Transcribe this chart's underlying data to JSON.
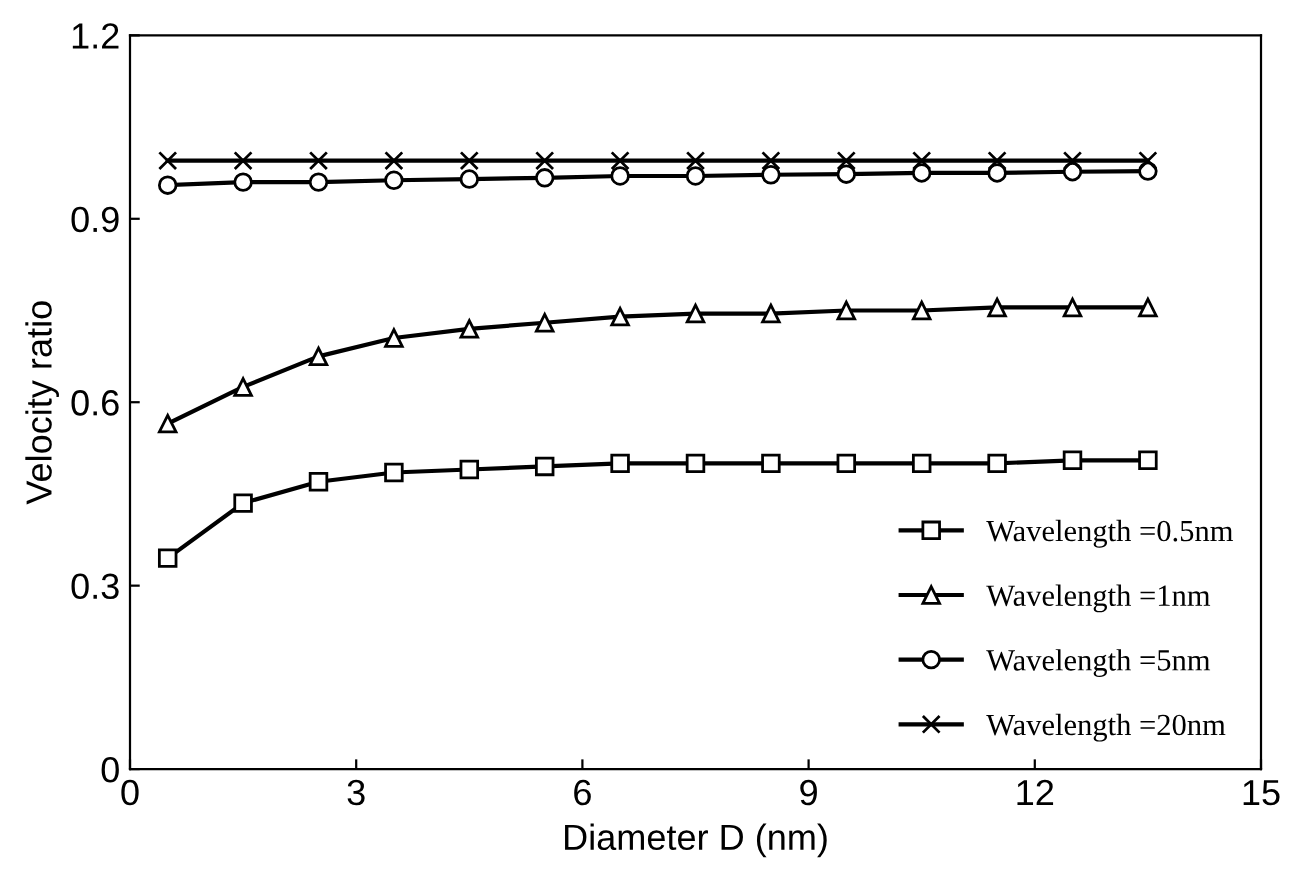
{
  "chart_data": {
    "type": "line",
    "xlabel": "Diameter D (nm)",
    "ylabel": "Velocity ratio",
    "x": [
      0.5,
      1.5,
      2.5,
      3.5,
      4.5,
      5.5,
      6.5,
      7.5,
      8.5,
      9.5,
      10.5,
      11.5,
      12.5,
      13.5
    ],
    "series": [
      {
        "name": "Wavelength =0.5nm",
        "color": "#000000",
        "marker": "square",
        "values": [
          0.345,
          0.435,
          0.47,
          0.485,
          0.49,
          0.495,
          0.5,
          0.5,
          0.5,
          0.5,
          0.5,
          0.5,
          0.505,
          0.505
        ]
      },
      {
        "name": "Wavelength =1nm",
        "color": "#000000",
        "marker": "triangle",
        "values": [
          0.565,
          0.625,
          0.675,
          0.705,
          0.72,
          0.73,
          0.74,
          0.745,
          0.745,
          0.75,
          0.75,
          0.755,
          0.755,
          0.755
        ]
      },
      {
        "name": "Wavelength =5nm",
        "color": "#000000",
        "marker": "circle",
        "values": [
          0.955,
          0.96,
          0.96,
          0.963,
          0.965,
          0.967,
          0.97,
          0.97,
          0.972,
          0.973,
          0.975,
          0.975,
          0.977,
          0.978
        ]
      },
      {
        "name": "Wavelength =20nm",
        "color": "#000000",
        "marker": "cross",
        "values": [
          0.995,
          0.995,
          0.995,
          0.995,
          0.995,
          0.995,
          0.995,
          0.995,
          0.995,
          0.995,
          0.995,
          0.995,
          0.995,
          0.995
        ]
      }
    ],
    "xlim": [
      0,
      15
    ],
    "xticks": [
      0,
      3,
      6,
      9,
      12,
      15
    ],
    "ylim": [
      0,
      1.2
    ],
    "yticks": [
      {
        "value": 0,
        "label": "0"
      },
      {
        "value": 0.3,
        "label": "0.3"
      },
      {
        "value": 0.6,
        "label": "0.6"
      },
      {
        "value": 0.9,
        "label": "0.9"
      },
      {
        "value": 1.2,
        "label": "1.2"
      }
    ],
    "grid": false,
    "legend": "bottom right",
    "line_style": "solid"
  }
}
